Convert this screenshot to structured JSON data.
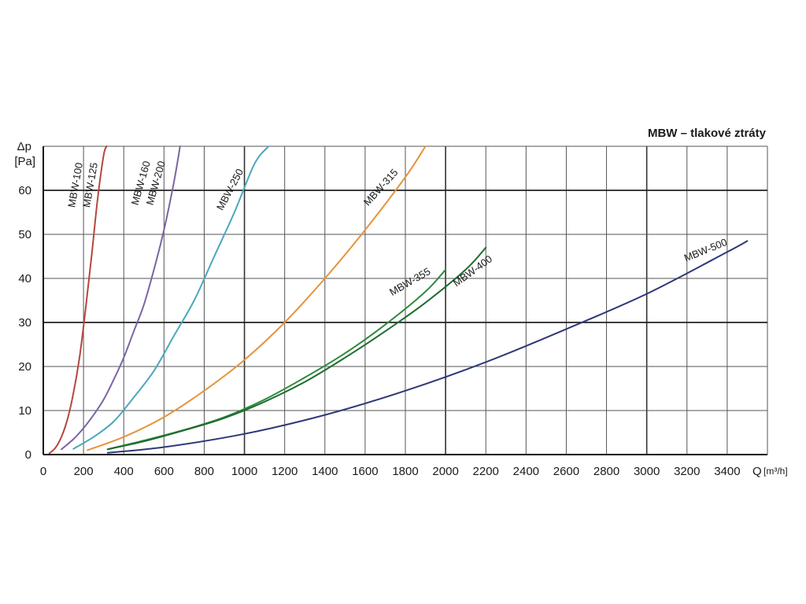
{
  "chart_data": {
    "type": "line",
    "title": "MBW – tlakové ztráty",
    "ylabel_line1": "Δp",
    "ylabel_line2": "[Pa]",
    "xlabel_prefix": "Q",
    "xlabel_unit": "[m³/h]",
    "xlim": [
      0,
      3600
    ],
    "ylim": [
      0,
      70
    ],
    "xticks": [
      0,
      200,
      400,
      600,
      800,
      1000,
      1200,
      1400,
      1600,
      1800,
      2000,
      2200,
      2400,
      2600,
      2800,
      3000,
      3200,
      3400
    ],
    "yticks": [
      0,
      10,
      20,
      30,
      40,
      50,
      60
    ],
    "grid": true,
    "series": [
      {
        "name": "MBW-100",
        "color": "#b5473f",
        "x": [
          30,
          60,
          90,
          120,
          150,
          180,
          210,
          240,
          270,
          300,
          315
        ],
        "y": [
          0.3,
          1.5,
          4,
          8,
          14,
          22,
          33,
          45,
          58,
          68,
          70
        ]
      },
      {
        "name": "MBW-125",
        "color": "#b5473f",
        "x": [],
        "y": []
      },
      {
        "name": "MBW-160",
        "color": "#7a65a2",
        "x": [
          90,
          150,
          200,
          250,
          300,
          350,
          400,
          450,
          500,
          550,
          600,
          650,
          680
        ],
        "y": [
          1.2,
          3.5,
          6,
          9,
          12.5,
          17,
          22,
          28,
          34,
          42,
          51,
          62,
          70
        ]
      },
      {
        "name": "MBW-200",
        "color": "#7a65a2",
        "x": [],
        "y": []
      },
      {
        "name": "MBW-250",
        "color": "#4ba7bb",
        "x": [
          150,
          250,
          350,
          450,
          550,
          650,
          750,
          850,
          950,
          1050,
          1120
        ],
        "y": [
          1.3,
          4,
          7.5,
          13,
          19,
          27,
          35,
          45,
          55,
          66,
          70
        ]
      },
      {
        "name": "MBW-315",
        "color": "#e5943c",
        "x": [
          220,
          400,
          600,
          800,
          1000,
          1200,
          1400,
          1600,
          1800,
          1900
        ],
        "y": [
          1,
          4,
          8.5,
          14.5,
          21.5,
          30,
          40,
          51,
          63,
          70
        ]
      },
      {
        "name": "MBW-355",
        "color": "#2e8a3c",
        "x": [
          320,
          500,
          700,
          900,
          1100,
          1300,
          1500,
          1700,
          1900,
          2000
        ],
        "y": [
          1.2,
          3.2,
          5.6,
          8.5,
          12.5,
          17.5,
          23,
          29.5,
          37,
          42
        ]
      },
      {
        "name": "MBW-400",
        "color": "#1e6b30",
        "x": [
          320,
          500,
          700,
          900,
          1100,
          1300,
          1500,
          1700,
          1900,
          2100,
          2200
        ],
        "y": [
          1.2,
          3,
          5.5,
          8.3,
          12,
          16.5,
          22,
          28,
          34.5,
          42,
          47
        ]
      },
      {
        "name": "MBW-500",
        "color": "#2e3878",
        "x": [
          320,
          600,
          1000,
          1400,
          1800,
          2200,
          2600,
          3000,
          3400,
          3500
        ],
        "y": [
          0.4,
          1.7,
          4.7,
          9,
          14.5,
          21,
          28.5,
          36.5,
          46,
          48.5
        ]
      }
    ]
  }
}
